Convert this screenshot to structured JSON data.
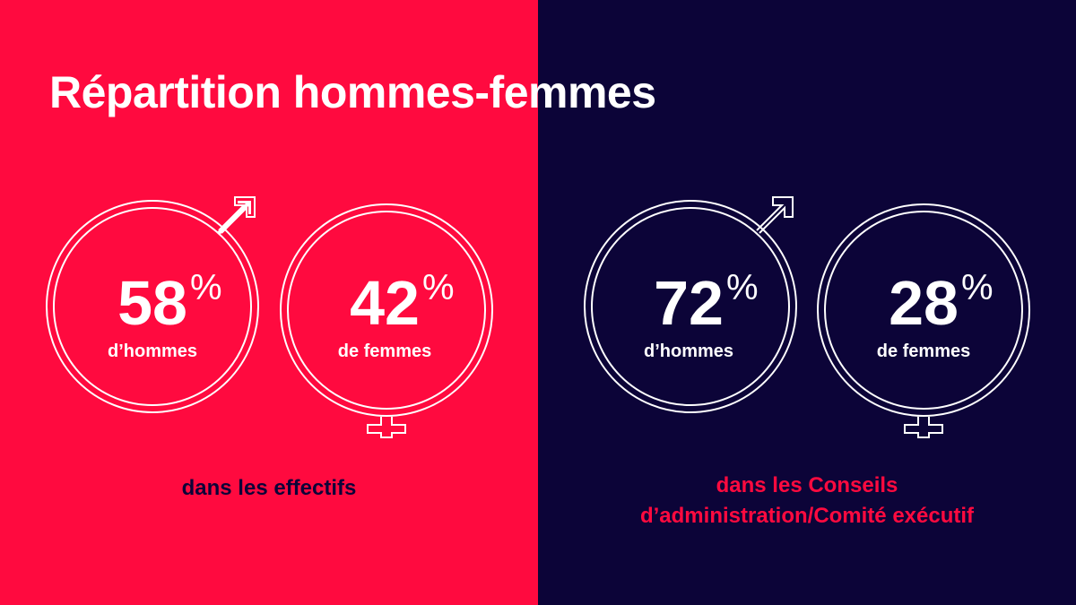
{
  "title": "Répartition hommes-femmes",
  "colors": {
    "red": "#FF0A3F",
    "navy": "#0C0438",
    "white": "#FFFFFF"
  },
  "panels": [
    {
      "men": {
        "value": "58",
        "unit": "%",
        "label": "d’hommes",
        "icon": "male-symbol-icon"
      },
      "women": {
        "value": "42",
        "unit": "%",
        "label": "de femmes",
        "icon": "female-symbol-icon"
      },
      "caption": "dans les effectifs"
    },
    {
      "men": {
        "value": "72",
        "unit": "%",
        "label": "d’hommes",
        "icon": "male-symbol-icon"
      },
      "women": {
        "value": "28",
        "unit": "%",
        "label": "de femmes",
        "icon": "female-symbol-icon"
      },
      "caption_line1": "dans les Conseils",
      "caption_line2": "d’administration/Comité exécutif"
    }
  ]
}
